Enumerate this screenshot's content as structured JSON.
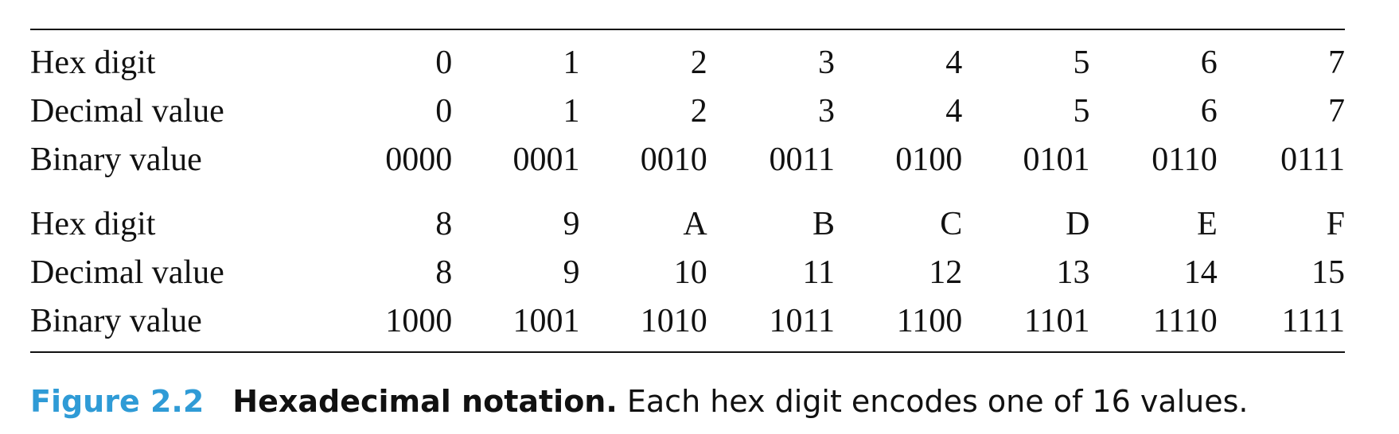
{
  "table": {
    "groups": [
      {
        "rows": [
          {
            "label": "Hex digit",
            "values": [
              "0",
              "1",
              "2",
              "3",
              "4",
              "5",
              "6",
              "7"
            ]
          },
          {
            "label": "Decimal value",
            "values": [
              "0",
              "1",
              "2",
              "3",
              "4",
              "5",
              "6",
              "7"
            ]
          },
          {
            "label": "Binary value",
            "values": [
              "0000",
              "0001",
              "0010",
              "0011",
              "0100",
              "0101",
              "0110",
              "0111"
            ]
          }
        ]
      },
      {
        "rows": [
          {
            "label": "Hex digit",
            "values": [
              "8",
              "9",
              "A",
              "B",
              "C",
              "D",
              "E",
              "F"
            ]
          },
          {
            "label": "Decimal value",
            "values": [
              "8",
              "9",
              "10",
              "11",
              "12",
              "13",
              "14",
              "15"
            ]
          },
          {
            "label": "Binary value",
            "values": [
              "1000",
              "1001",
              "1010",
              "1011",
              "1100",
              "1101",
              "1110",
              "1111"
            ]
          }
        ]
      }
    ]
  },
  "caption": {
    "figure_number": "Figure 2.2",
    "title": "Hexadecimal notation.",
    "text": " Each hex digit encodes one of 16 values."
  },
  "colors": {
    "figure_number": "#2f9bd6",
    "text": "#111111"
  }
}
